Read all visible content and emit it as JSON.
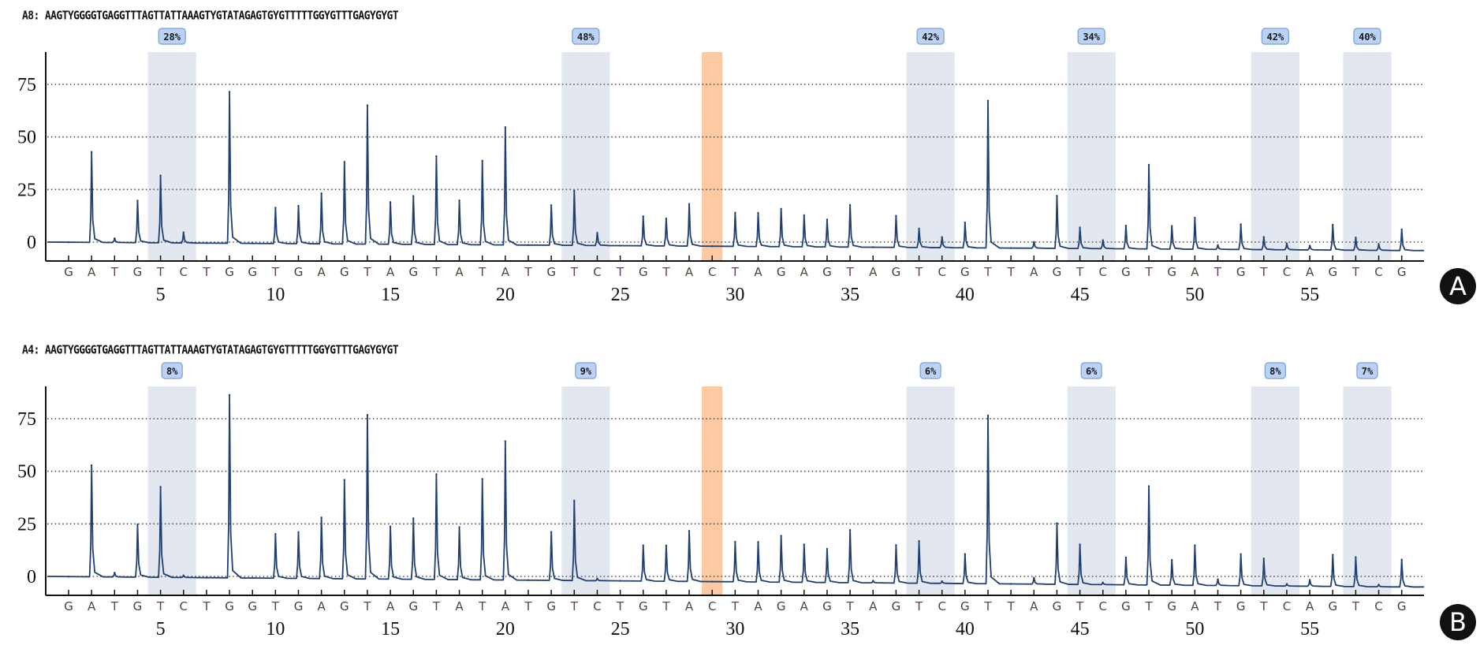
{
  "chart_data": [
    {
      "type": "pyrogram",
      "panel_label": "A",
      "sample_id": "A8",
      "sequence_label": "A8:",
      "sequence_to_analyze": "AAGTYGGGGTGAGGTTTAGTTATTAAAGTYGTATAGAGTGYGTTTTTGGYGTTTGAGYGYGT",
      "ylim": [
        -10,
        90
      ],
      "yticks": [
        0,
        25,
        50,
        75
      ],
      "grid": "dotted horizontal",
      "xticks": [
        5,
        10,
        15,
        20,
        25,
        30,
        35,
        40,
        45,
        50,
        55
      ],
      "dispensation": [
        "G",
        "A",
        "T",
        "G",
        "T",
        "C",
        "T",
        "G",
        "G",
        "T",
        "G",
        "A",
        "G",
        "T",
        "A",
        "G",
        "T",
        "A",
        "T",
        "A",
        "T",
        "G",
        "T",
        "C",
        "T",
        "G",
        "T",
        "A",
        "C",
        "T",
        "A",
        "G",
        "A",
        "G",
        "T",
        "A",
        "G",
        "T",
        "C",
        "G",
        "T",
        "T",
        "A",
        "G",
        "T",
        "C",
        "G",
        "T",
        "G",
        "A",
        "T",
        "G",
        "T",
        "C",
        "A",
        "G",
        "T",
        "C",
        "G"
      ],
      "peaks": [
        0,
        43,
        2,
        20,
        32,
        5,
        0,
        72,
        0,
        17,
        18,
        24,
        39,
        66,
        20,
        23,
        42,
        21,
        40,
        56,
        0,
        19,
        26,
        6,
        0,
        14,
        13,
        20,
        0,
        16,
        16,
        18,
        15,
        13,
        20,
        0,
        15,
        9,
        5,
        12,
        70,
        0,
        3,
        25,
        10,
        4,
        11,
        40,
        11,
        15,
        2,
        12,
        6,
        3,
        2,
        12,
        6,
        3,
        10
      ],
      "baseline_drift_end": -4,
      "cpg_sites": [
        {
          "positions": [
            5,
            6
          ],
          "methylation": "28%"
        },
        {
          "positions": [
            23,
            24
          ],
          "methylation": "48%"
        },
        {
          "positions": [
            38,
            39
          ],
          "methylation": "42%"
        },
        {
          "positions": [
            45,
            46
          ],
          "methylation": "34%"
        },
        {
          "positions": [
            53,
            54
          ],
          "methylation": "42%"
        },
        {
          "positions": [
            57,
            58
          ],
          "methylation": "40%"
        }
      ],
      "control_site": {
        "positions": [
          29
        ],
        "color": "#fcc9a2"
      }
    },
    {
      "type": "pyrogram",
      "panel_label": "B",
      "sample_id": "A4",
      "sequence_label": "A4:",
      "sequence_to_analyze": "AAGTYGGGGTGAGGTTTAGTTATTAAAGTYGTATAGAGTGYGTTTTTGGYGTTTGAGYGYGT",
      "ylim": [
        -10,
        90
      ],
      "yticks": [
        0,
        25,
        50,
        75
      ],
      "grid": "dotted horizontal",
      "xticks": [
        5,
        10,
        15,
        20,
        25,
        30,
        35,
        40,
        45,
        50,
        55
      ],
      "dispensation": [
        "G",
        "A",
        "T",
        "G",
        "T",
        "C",
        "T",
        "G",
        "G",
        "T",
        "G",
        "A",
        "G",
        "T",
        "A",
        "G",
        "T",
        "A",
        "T",
        "A",
        "T",
        "G",
        "T",
        "C",
        "T",
        "G",
        "T",
        "A",
        "C",
        "T",
        "A",
        "G",
        "A",
        "G",
        "T",
        "A",
        "G",
        "T",
        "C",
        "G",
        "T",
        "T",
        "A",
        "G",
        "T",
        "C",
        "G",
        "T",
        "G",
        "A",
        "T",
        "G",
        "T",
        "C",
        "A",
        "G",
        "T",
        "C",
        "G"
      ],
      "peaks": [
        0,
        53,
        2,
        25,
        43,
        1,
        0,
        87,
        0,
        21,
        22,
        29,
        47,
        78,
        25,
        29,
        50,
        25,
        48,
        66,
        0,
        23,
        38,
        1,
        0,
        17,
        17,
        24,
        0,
        19,
        19,
        22,
        18,
        16,
        25,
        1,
        18,
        20,
        1,
        14,
        80,
        0,
        3,
        29,
        19,
        1,
        13,
        47,
        12,
        19,
        3,
        15,
        13,
        1,
        3,
        15,
        14,
        1,
        13
      ],
      "baseline_drift_end": -5,
      "cpg_sites": [
        {
          "positions": [
            5,
            6
          ],
          "methylation": "8%"
        },
        {
          "positions": [
            23,
            24
          ],
          "methylation": "9%"
        },
        {
          "positions": [
            38,
            39
          ],
          "methylation": "6%"
        },
        {
          "positions": [
            45,
            46
          ],
          "methylation": "6%"
        },
        {
          "positions": [
            53,
            54
          ],
          "methylation": "8%"
        },
        {
          "positions": [
            57,
            58
          ],
          "methylation": "7%"
        }
      ],
      "control_site": {
        "positions": [
          29
        ],
        "color": "#fcc9a2"
      }
    }
  ],
  "colors": {
    "trace": "#1f3f73",
    "cpg_band": "#e3e8f0",
    "control_band": "#fcc9a2",
    "grid": "#555555",
    "base_G": "#3a3f4a",
    "base_A": "#4a4a3a",
    "base_T": "#6b3a62",
    "base_C": "#404a55"
  }
}
